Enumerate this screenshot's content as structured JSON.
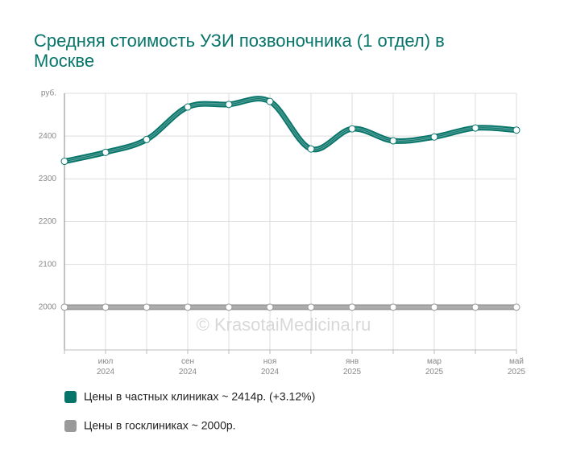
{
  "chart_data": {
    "type": "line",
    "title": "Средняя стоимость УЗИ позвоночника (1 отдел) в Москве",
    "categories": [
      null,
      "июл 2024",
      null,
      "сен 2024",
      null,
      "ноя 2024",
      null,
      "янв 2025",
      null,
      "мар 2025",
      null,
      "май 2025"
    ],
    "series": [
      {
        "name": "Цены в частных клиниках ~ 2414р. (+3.12%)",
        "color": "#08756a",
        "values": [
          2341,
          2362,
          2392,
          2468,
          2474,
          2481,
          2370,
          2417,
          2389,
          2398,
          2419,
          2414
        ]
      },
      {
        "name": "Цены в госклиниках ~ 2000р.",
        "color": "#9a9a9a",
        "values": [
          2000,
          2000,
          2000,
          2000,
          2000,
          2000,
          2000,
          2000,
          2000,
          2000,
          2000,
          2000
        ]
      }
    ],
    "ylim": [
      1900,
      2500
    ],
    "yticks": [
      2000,
      2100,
      2200,
      2300,
      2400,
      {
        "value": 2500,
        "label": "руб."
      }
    ],
    "grid": true,
    "watermark": "© KrasotaiMedicina.ru"
  }
}
